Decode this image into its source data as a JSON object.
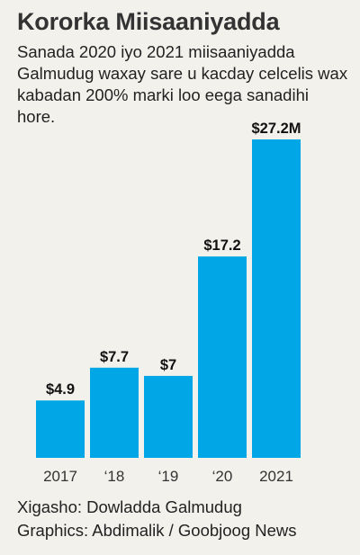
{
  "header": {
    "title": "Kororka Miisaaniyadda",
    "subtitle": "Sanada 2020 iyo 2021 miisaaniyadda Galmudug waxay sare u kacday celcelis wax kabadan 200% marki loo eega sanadihi hore."
  },
  "chart_data": {
    "type": "bar",
    "categories": [
      "2017",
      "‘18",
      "‘19",
      "‘20",
      "2021"
    ],
    "values": [
      4.9,
      7.7,
      7,
      17.2,
      27.2
    ],
    "data_labels": [
      "$4.9",
      "$7.7",
      "$7",
      "$17.2",
      "$27.2M"
    ],
    "unit": "$M",
    "ylim": [
      0,
      27.2
    ],
    "bar_color": "#00a6e6",
    "grid": false,
    "legend": "none"
  },
  "footer": {
    "source": "Xigasho: Dowladda Galmudug",
    "credit": "Graphics: Abdimalik / Goobjoog News"
  }
}
